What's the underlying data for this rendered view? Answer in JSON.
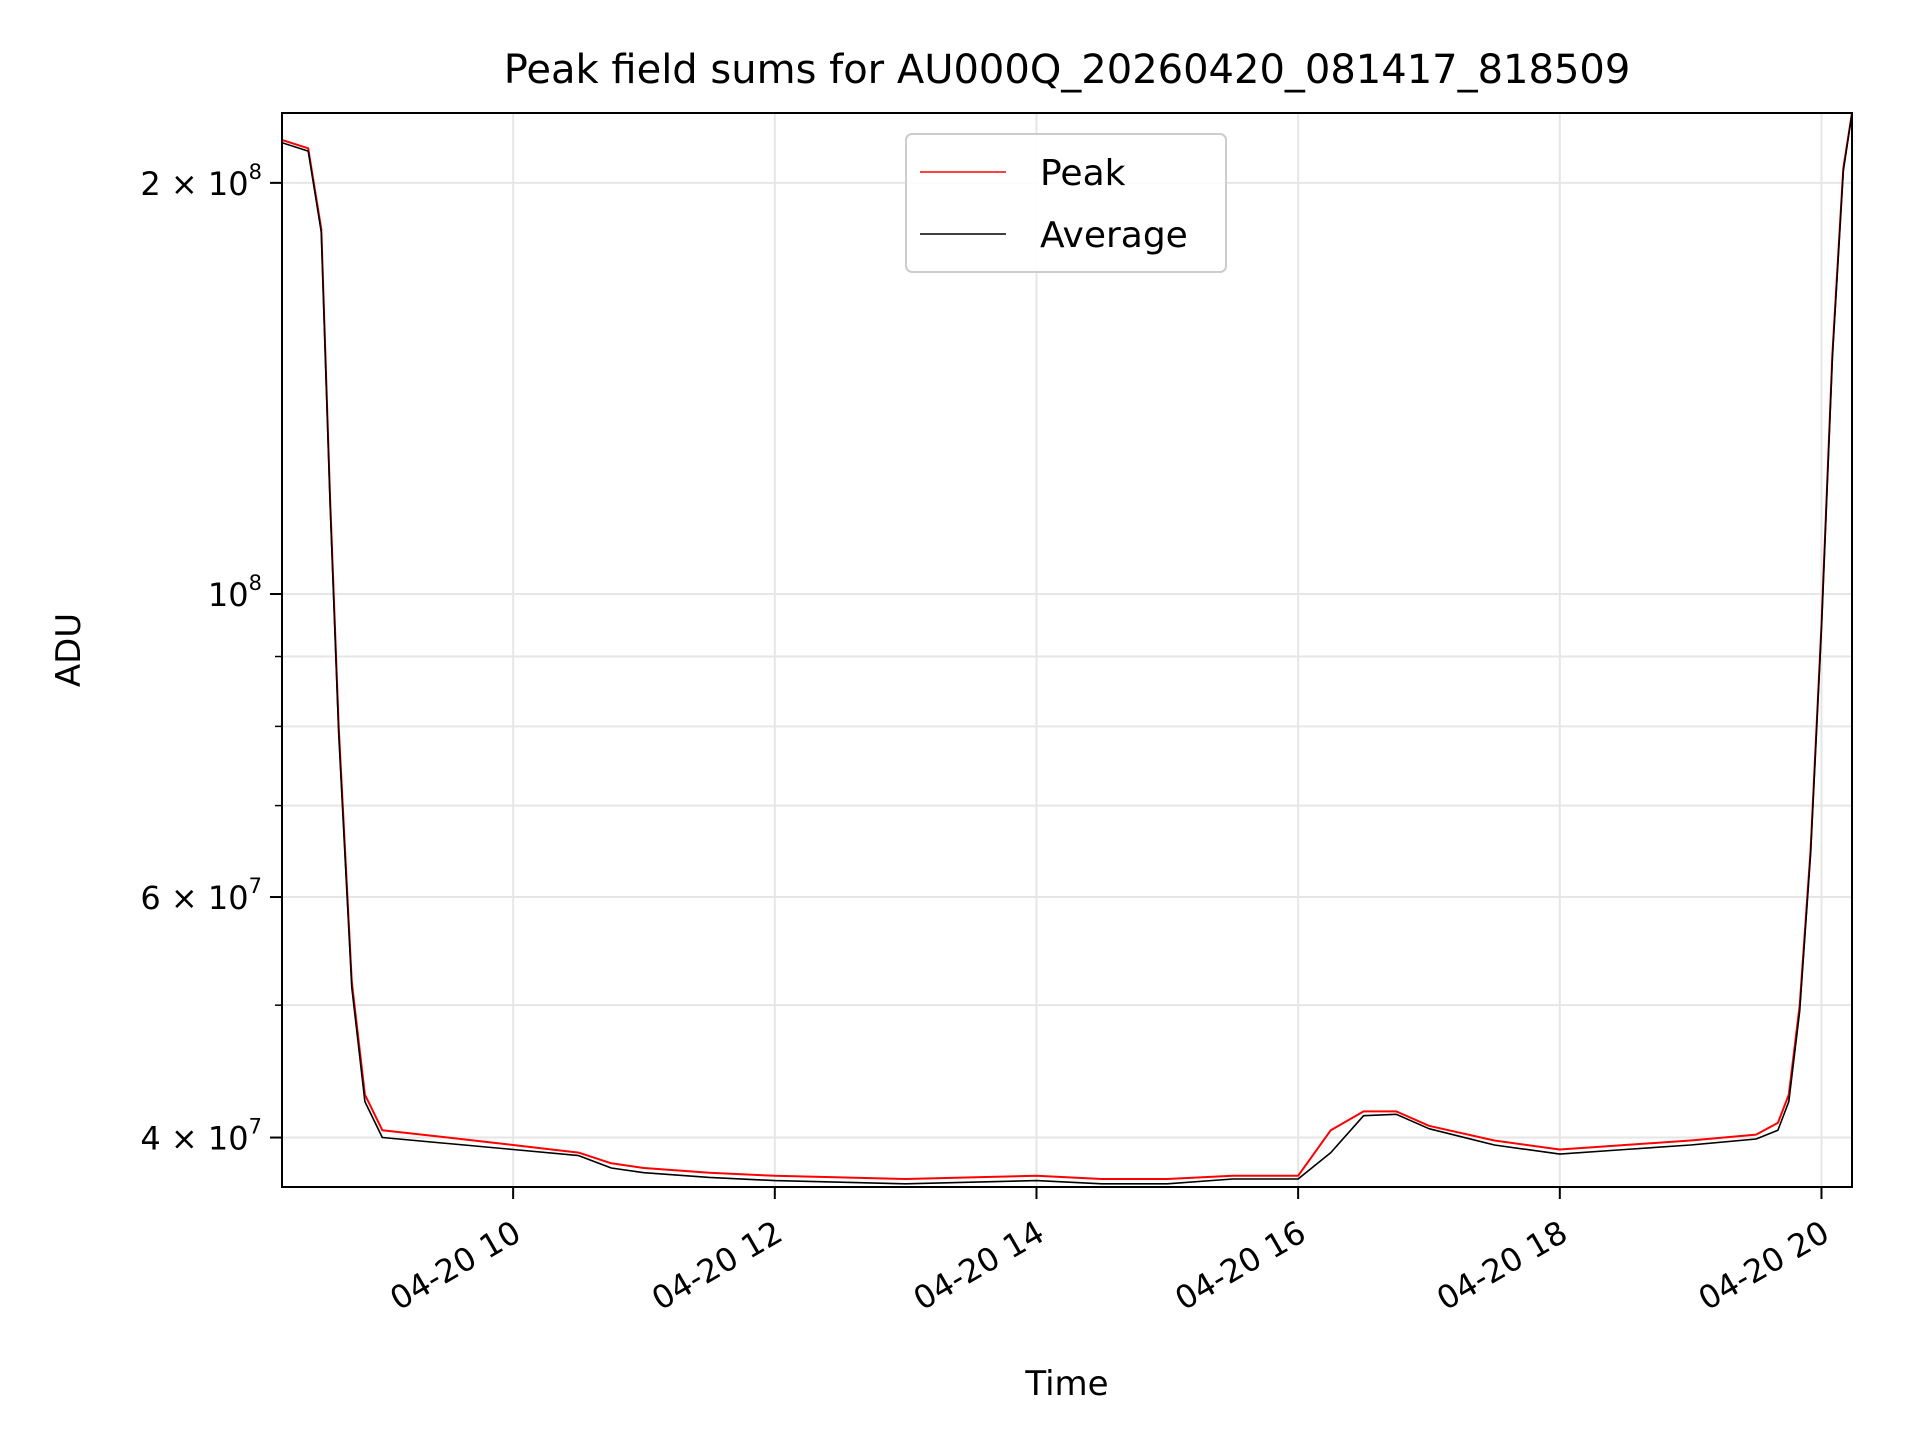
{
  "chart_data": {
    "type": "line",
    "title": "Peak field sums for AU000Q_20260420_081417_818509",
    "xlabel": "Time",
    "ylabel": "ADU",
    "yscale": "log",
    "grid": true,
    "legend_placement": "upper-center",
    "xlim": [
      "2026-04-20 08:14",
      "2026-04-20 20:14"
    ],
    "ylim": [
      36800000,
      225000000
    ],
    "x_ticks": [
      {
        "value": "2026-04-20 10:00",
        "label": "04-20 10"
      },
      {
        "value": "2026-04-20 12:00",
        "label": "04-20 12"
      },
      {
        "value": "2026-04-20 14:00",
        "label": "04-20 14"
      },
      {
        "value": "2026-04-20 16:00",
        "label": "04-20 16"
      },
      {
        "value": "2026-04-20 18:00",
        "label": "04-20 18"
      },
      {
        "value": "2026-04-20 20:00",
        "label": "04-20 20"
      }
    ],
    "y_ticks": [
      {
        "value": 40000000,
        "mantissa": "4",
        "exponent": "7",
        "label": "4 × 10^7"
      },
      {
        "value": 60000000,
        "mantissa": "6",
        "exponent": "7",
        "label": "6 × 10^7"
      },
      {
        "value": 100000000,
        "mantissa": "",
        "exponent": "8",
        "label": "10^8"
      },
      {
        "value": 200000000,
        "mantissa": "2",
        "exponent": "8",
        "label": "2 × 10^8"
      }
    ],
    "y_minor_ticks": [
      50000000,
      70000000,
      80000000,
      90000000
    ],
    "series": [
      {
        "name": "Peak",
        "color": "#ff0000",
        "x": [
          "2026-04-20 08:14",
          "2026-04-20 08:26",
          "2026-04-20 08:32",
          "2026-04-20 08:36",
          "2026-04-20 08:40",
          "2026-04-20 08:46",
          "2026-04-20 08:52",
          "2026-04-20 09:00",
          "2026-04-20 09:30",
          "2026-04-20 10:00",
          "2026-04-20 10:30",
          "2026-04-20 10:45",
          "2026-04-20 11:00",
          "2026-04-20 11:30",
          "2026-04-20 12:00",
          "2026-04-20 12:30",
          "2026-04-20 13:00",
          "2026-04-20 13:30",
          "2026-04-20 14:00",
          "2026-04-20 14:30",
          "2026-04-20 15:00",
          "2026-04-20 15:30",
          "2026-04-20 16:00",
          "2026-04-20 16:15",
          "2026-04-20 16:30",
          "2026-04-20 16:45",
          "2026-04-20 17:00",
          "2026-04-20 17:30",
          "2026-04-20 18:00",
          "2026-04-20 18:30",
          "2026-04-20 19:00",
          "2026-04-20 19:30",
          "2026-04-20 19:40",
          "2026-04-20 19:45",
          "2026-04-20 19:50",
          "2026-04-20 19:55",
          "2026-04-20 20:00",
          "2026-04-20 20:05",
          "2026-04-20 20:10",
          "2026-04-20 20:14"
        ],
        "y": [
          215000000,
          212000000,
          185000000,
          118000000,
          80000000,
          52000000,
          43000000,
          40500000,
          40000000,
          39500000,
          39000000,
          38300000,
          38000000,
          37700000,
          37500000,
          37400000,
          37300000,
          37400000,
          37500000,
          37300000,
          37300000,
          37500000,
          37500000,
          40500000,
          41800000,
          41800000,
          40800000,
          39800000,
          39200000,
          39500000,
          39800000,
          40200000,
          41000000,
          43000000,
          50000000,
          65000000,
          95000000,
          150000000,
          205000000,
          225000000
        ]
      },
      {
        "name": "Average",
        "color": "#000000",
        "x": [
          "2026-04-20 08:14",
          "2026-04-20 08:26",
          "2026-04-20 08:32",
          "2026-04-20 08:36",
          "2026-04-20 08:40",
          "2026-04-20 08:46",
          "2026-04-20 08:52",
          "2026-04-20 09:00",
          "2026-04-20 09:30",
          "2026-04-20 10:00",
          "2026-04-20 10:30",
          "2026-04-20 10:45",
          "2026-04-20 11:00",
          "2026-04-20 11:30",
          "2026-04-20 12:00",
          "2026-04-20 12:30",
          "2026-04-20 13:00",
          "2026-04-20 13:30",
          "2026-04-20 14:00",
          "2026-04-20 14:30",
          "2026-04-20 15:00",
          "2026-04-20 15:30",
          "2026-04-20 16:00",
          "2026-04-20 16:15",
          "2026-04-20 16:30",
          "2026-04-20 16:45",
          "2026-04-20 17:00",
          "2026-04-20 17:30",
          "2026-04-20 18:00",
          "2026-04-20 18:30",
          "2026-04-20 19:00",
          "2026-04-20 19:30",
          "2026-04-20 19:40",
          "2026-04-20 19:45",
          "2026-04-20 19:50",
          "2026-04-20 19:55",
          "2026-04-20 20:00",
          "2026-04-20 20:05",
          "2026-04-20 20:10",
          "2026-04-20 20:14"
        ],
        "y": [
          214000000,
          211000000,
          184000000,
          117000000,
          79000000,
          51500000,
          42500000,
          40000000,
          39600000,
          39200000,
          38800000,
          38000000,
          37700000,
          37400000,
          37200000,
          37100000,
          37000000,
          37100000,
          37200000,
          37000000,
          37000000,
          37300000,
          37300000,
          39000000,
          41500000,
          41600000,
          40600000,
          39500000,
          38900000,
          39200000,
          39500000,
          39900000,
          40500000,
          42500000,
          49500000,
          64500000,
          94500000,
          149000000,
          204000000,
          225000000
        ]
      }
    ]
  }
}
